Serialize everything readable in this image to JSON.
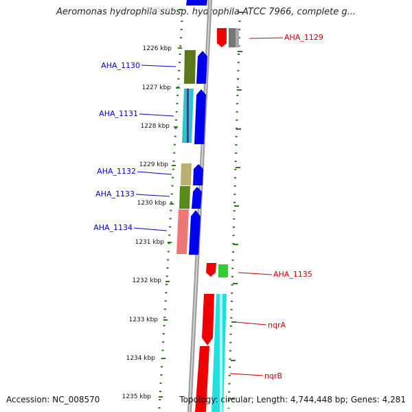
{
  "title": "Aeromonas hydrophila subsp. hydrophila ATCC 7966, complete g...",
  "footer": {
    "accession": "Accession: NC_008570",
    "topology": "Topology: circular; Length: 4,744,448 bp; Genes: 4,281"
  },
  "scale": {
    "ticks": [
      "1225 kbp",
      "1226 kbp",
      "1227 kbp",
      "1228 kbp",
      "1229 kbp",
      "1230 kbp",
      "1231 kbp",
      "1232 kbp",
      "1233 kbp",
      "1234 kbp",
      "1235 kbp"
    ]
  },
  "colors": {
    "forward_label": "#0000cc",
    "reverse_label": "#cc0000",
    "guide": "#2a7a1a",
    "backbone": "#888888"
  },
  "left_labels": [
    "AHA_1130",
    "AHA_1131",
    "AHA_1132",
    "AHA_1133",
    "AHA_1134"
  ],
  "right_labels": [
    "AHA_1129",
    "AHA_1135",
    "nqrA",
    "nqrB"
  ]
}
